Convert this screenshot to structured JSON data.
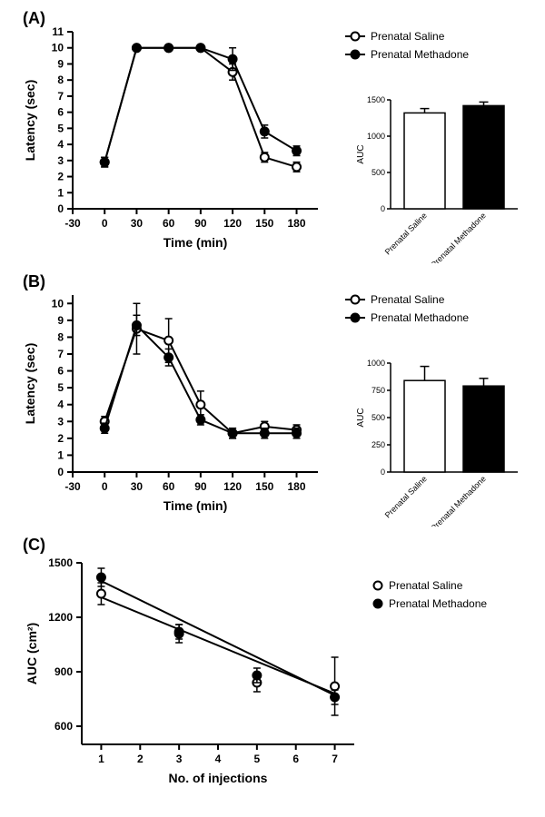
{
  "panelA": {
    "label": "(A)",
    "type": "line",
    "xlabel": "Time (min)",
    "ylabel": "Latency (sec)",
    "label_fontsize": 14,
    "tick_fontsize": 12,
    "xlim": [
      -30,
      200
    ],
    "ylim": [
      0,
      11
    ],
    "xticks": [
      -30,
      0,
      30,
      60,
      90,
      120,
      150,
      180
    ],
    "yticks": [
      0,
      1,
      2,
      3,
      4,
      5,
      6,
      7,
      8,
      9,
      10,
      11
    ],
    "series": [
      {
        "name": "Prenatal Saline",
        "marker": "open-circle",
        "color": "#000000",
        "fill": "#ffffff",
        "x": [
          0,
          30,
          60,
          90,
          120,
          150,
          180
        ],
        "y": [
          2.9,
          10,
          10,
          10,
          8.5,
          3.2,
          2.6
        ],
        "err": [
          0.3,
          0,
          0,
          0,
          0.5,
          0.3,
          0.3
        ]
      },
      {
        "name": "Prenatal Methadone",
        "marker": "filled-circle",
        "color": "#000000",
        "fill": "#000000",
        "x": [
          0,
          30,
          60,
          90,
          120,
          150,
          180
        ],
        "y": [
          2.9,
          10,
          10,
          10,
          9.3,
          4.8,
          3.6
        ],
        "err": [
          0.3,
          0,
          0,
          0,
          0.7,
          0.4,
          0.3
        ]
      }
    ],
    "legend": {
      "items": [
        "Prenatal Saline",
        "Prenatal Methadone"
      ],
      "markers": [
        "open-circle",
        "filled-circle"
      ]
    },
    "barInset": {
      "type": "bar",
      "ylabel": "AUC",
      "ylim": [
        0,
        1500
      ],
      "yticks": [
        0,
        500,
        1000,
        1500
      ],
      "categories": [
        "Prenatal Saline",
        "Prenatal Methadone"
      ],
      "values": [
        1320,
        1420
      ],
      "err": [
        60,
        50
      ],
      "colors": [
        "#ffffff",
        "#000000"
      ],
      "border": "#000000"
    }
  },
  "panelB": {
    "label": "(B)",
    "type": "line",
    "xlabel": "Time (min)",
    "ylabel": "Latency (sec)",
    "label_fontsize": 14,
    "tick_fontsize": 12,
    "xlim": [
      -30,
      200
    ],
    "ylim": [
      0,
      10.5
    ],
    "xticks": [
      -30,
      0,
      30,
      60,
      90,
      120,
      150,
      180
    ],
    "yticks": [
      0,
      1,
      2,
      3,
      4,
      5,
      6,
      7,
      8,
      9,
      10
    ],
    "series": [
      {
        "name": "Prenatal Saline",
        "marker": "open-circle",
        "color": "#000000",
        "fill": "#ffffff",
        "x": [
          0,
          30,
          60,
          90,
          120,
          150,
          180
        ],
        "y": [
          3.0,
          8.5,
          7.8,
          4.0,
          2.3,
          2.7,
          2.5
        ],
        "err": [
          0.3,
          1.5,
          1.3,
          0.8,
          0.3,
          0.3,
          0.3
        ]
      },
      {
        "name": "Prenatal Methadone",
        "marker": "filled-circle",
        "color": "#000000",
        "fill": "#000000",
        "x": [
          0,
          30,
          60,
          90,
          120,
          150,
          180
        ],
        "y": [
          2.6,
          8.7,
          6.8,
          3.1,
          2.3,
          2.3,
          2.3
        ],
        "err": [
          0.3,
          0.6,
          0.5,
          0.3,
          0.3,
          0.3,
          0.3
        ]
      }
    ],
    "legend": {
      "items": [
        "Prenatal Saline",
        "Prenatal Methadone"
      ],
      "markers": [
        "open-circle",
        "filled-circle"
      ]
    },
    "barInset": {
      "type": "bar",
      "ylabel": "AUC",
      "ylim": [
        0,
        1000
      ],
      "yticks": [
        0,
        250,
        500,
        750,
        1000
      ],
      "categories": [
        "Prenatal Saline",
        "Prenatal Methadone"
      ],
      "values": [
        840,
        790
      ],
      "err": [
        130,
        70
      ],
      "colors": [
        "#ffffff",
        "#000000"
      ],
      "border": "#000000"
    }
  },
  "panelC": {
    "label": "(C)",
    "type": "scatter-line",
    "xlabel": "No. of injections",
    "ylabel": "AUC (cm²)",
    "label_fontsize": 14,
    "tick_fontsize": 12,
    "xlim": [
      0.5,
      7.5
    ],
    "ylim": [
      500,
      1500
    ],
    "xticks": [
      1,
      2,
      3,
      4,
      5,
      6,
      7
    ],
    "yticks": [
      600,
      900,
      1200,
      1500
    ],
    "series": [
      {
        "name": "Prenatal Saline",
        "marker": "open-circle",
        "color": "#000000",
        "fill": "#ffffff",
        "x": [
          1,
          3,
          5,
          7
        ],
        "y": [
          1330,
          1110,
          840,
          820
        ],
        "err": [
          60,
          50,
          50,
          160
        ],
        "fit": {
          "x1": 1,
          "y1": 1310,
          "x2": 7,
          "y2": 780
        }
      },
      {
        "name": "Prenatal Methadone",
        "marker": "filled-circle",
        "color": "#000000",
        "fill": "#000000",
        "x": [
          1,
          3,
          5,
          7
        ],
        "y": [
          1420,
          1120,
          880,
          760
        ],
        "err": [
          50,
          40,
          40,
          40
        ],
        "fit": {
          "x1": 1,
          "y1": 1400,
          "x2": 7,
          "y2": 770
        }
      }
    ],
    "legend": {
      "items": [
        "Prenatal Saline",
        "Prenatal Methadone"
      ],
      "markers": [
        "open-circle",
        "filled-circle"
      ]
    }
  },
  "style": {
    "axis_color": "#000000",
    "line_width": 2,
    "marker_radius": 4.5,
    "background": "#ffffff",
    "font_family": "Arial"
  }
}
